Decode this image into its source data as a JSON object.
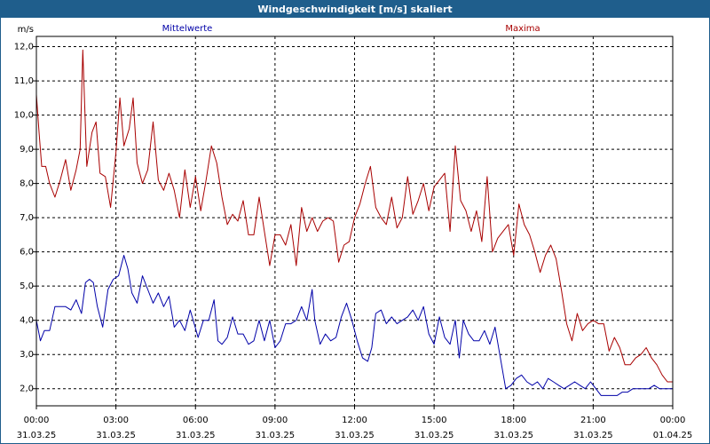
{
  "window": {
    "title": "Windgeschwindigkeit [m/s] skaliert"
  },
  "colors": {
    "title_bar": "#1f5e8c",
    "mean": "#0000a8",
    "max": "#a80000",
    "grid": "#000000"
  },
  "chart_data": {
    "type": "line",
    "title": "Windgeschwindigkeit [m/s] skaliert",
    "ylabel": "m/s",
    "xlabel": "",
    "ylim": [
      1.5,
      12.3
    ],
    "xlim": [
      0,
      24
    ],
    "grid": true,
    "yticks": [
      {
        "value": 2.0,
        "label": "2,0"
      },
      {
        "value": 3.0,
        "label": "3,0"
      },
      {
        "value": 4.0,
        "label": "4,0"
      },
      {
        "value": 5.0,
        "label": "5,0"
      },
      {
        "value": 6.0,
        "label": "6,0"
      },
      {
        "value": 7.0,
        "label": "7,0"
      },
      {
        "value": 8.0,
        "label": "8,0"
      },
      {
        "value": 9.0,
        "label": "9,0"
      },
      {
        "value": 10.0,
        "label": "10,0"
      },
      {
        "value": 11.0,
        "label": "11,0"
      },
      {
        "value": 12.0,
        "label": "12,0"
      }
    ],
    "xticks": [
      {
        "value": 0,
        "time": "00:00",
        "date": "31.03.25"
      },
      {
        "value": 3,
        "time": "03:00",
        "date": "31.03.25"
      },
      {
        "value": 6,
        "time": "06:00",
        "date": "31.03.25"
      },
      {
        "value": 9,
        "time": "09:00",
        "date": "31.03.25"
      },
      {
        "value": 12,
        "time": "12:00",
        "date": "31.03.25"
      },
      {
        "value": 15,
        "time": "15:00",
        "date": "31.03.25"
      },
      {
        "value": 18,
        "time": "18:00",
        "date": "31.03.25"
      },
      {
        "value": 21,
        "time": "21:00",
        "date": "31.03.25"
      },
      {
        "value": 24,
        "time": "00:00",
        "date": "01.04.25"
      }
    ],
    "series": [
      {
        "name": "Mittelwerte",
        "color": "#0000a8",
        "points": [
          [
            0.0,
            4.0
          ],
          [
            0.15,
            3.4
          ],
          [
            0.3,
            3.7
          ],
          [
            0.5,
            3.7
          ],
          [
            0.7,
            4.4
          ],
          [
            0.9,
            4.4
          ],
          [
            1.1,
            4.4
          ],
          [
            1.3,
            4.3
          ],
          [
            1.5,
            4.6
          ],
          [
            1.7,
            4.2
          ],
          [
            1.85,
            5.1
          ],
          [
            2.0,
            5.2
          ],
          [
            2.15,
            5.1
          ],
          [
            2.3,
            4.4
          ],
          [
            2.5,
            3.8
          ],
          [
            2.7,
            4.9
          ],
          [
            2.9,
            5.2
          ],
          [
            3.1,
            5.3
          ],
          [
            3.3,
            5.9
          ],
          [
            3.45,
            5.5
          ],
          [
            3.6,
            4.8
          ],
          [
            3.8,
            4.5
          ],
          [
            4.0,
            5.3
          ],
          [
            4.2,
            4.9
          ],
          [
            4.4,
            4.5
          ],
          [
            4.6,
            4.8
          ],
          [
            4.8,
            4.4
          ],
          [
            5.0,
            4.7
          ],
          [
            5.2,
            3.8
          ],
          [
            5.4,
            4.0
          ],
          [
            5.6,
            3.7
          ],
          [
            5.8,
            4.3
          ],
          [
            5.95,
            3.9
          ],
          [
            6.1,
            3.5
          ],
          [
            6.3,
            4.0
          ],
          [
            6.5,
            4.0
          ],
          [
            6.7,
            4.6
          ],
          [
            6.85,
            3.4
          ],
          [
            7.0,
            3.3
          ],
          [
            7.2,
            3.5
          ],
          [
            7.4,
            4.1
          ],
          [
            7.6,
            3.6
          ],
          [
            7.8,
            3.6
          ],
          [
            8.0,
            3.3
          ],
          [
            8.2,
            3.4
          ],
          [
            8.4,
            4.0
          ],
          [
            8.6,
            3.4
          ],
          [
            8.8,
            4.0
          ],
          [
            9.0,
            3.2
          ],
          [
            9.2,
            3.4
          ],
          [
            9.4,
            3.9
          ],
          [
            9.6,
            3.9
          ],
          [
            9.8,
            4.0
          ],
          [
            10.0,
            4.4
          ],
          [
            10.2,
            4.0
          ],
          [
            10.4,
            4.9
          ],
          [
            10.5,
            4.0
          ],
          [
            10.7,
            3.3
          ],
          [
            10.9,
            3.6
          ],
          [
            11.1,
            3.4
          ],
          [
            11.3,
            3.5
          ],
          [
            11.5,
            4.1
          ],
          [
            11.7,
            4.5
          ],
          [
            11.9,
            4.0
          ],
          [
            12.1,
            3.4
          ],
          [
            12.3,
            2.9
          ],
          [
            12.5,
            2.8
          ],
          [
            12.65,
            3.2
          ],
          [
            12.8,
            4.2
          ],
          [
            13.0,
            4.3
          ],
          [
            13.2,
            3.9
          ],
          [
            13.4,
            4.1
          ],
          [
            13.6,
            3.9
          ],
          [
            13.8,
            4.0
          ],
          [
            14.0,
            4.1
          ],
          [
            14.2,
            4.3
          ],
          [
            14.4,
            4.0
          ],
          [
            14.6,
            4.4
          ],
          [
            14.8,
            3.6
          ],
          [
            15.0,
            3.3
          ],
          [
            15.2,
            4.1
          ],
          [
            15.4,
            3.5
          ],
          [
            15.6,
            3.3
          ],
          [
            15.8,
            4.0
          ],
          [
            15.95,
            2.9
          ],
          [
            16.1,
            4.0
          ],
          [
            16.3,
            3.6
          ],
          [
            16.5,
            3.4
          ],
          [
            16.7,
            3.4
          ],
          [
            16.9,
            3.7
          ],
          [
            17.1,
            3.3
          ],
          [
            17.3,
            3.8
          ],
          [
            17.5,
            2.9
          ],
          [
            17.7,
            2.0
          ],
          [
            17.9,
            2.1
          ],
          [
            18.1,
            2.3
          ],
          [
            18.3,
            2.4
          ],
          [
            18.5,
            2.2
          ],
          [
            18.7,
            2.1
          ],
          [
            18.9,
            2.2
          ],
          [
            19.1,
            2.0
          ],
          [
            19.3,
            2.3
          ],
          [
            19.5,
            2.2
          ],
          [
            19.7,
            2.1
          ],
          [
            19.9,
            2.0
          ],
          [
            20.1,
            2.1
          ],
          [
            20.3,
            2.2
          ],
          [
            20.5,
            2.1
          ],
          [
            20.7,
            2.0
          ],
          [
            20.9,
            2.2
          ],
          [
            21.1,
            2.0
          ],
          [
            21.3,
            1.8
          ],
          [
            21.5,
            1.8
          ],
          [
            21.7,
            1.8
          ],
          [
            21.9,
            1.8
          ],
          [
            22.1,
            1.9
          ],
          [
            22.3,
            1.9
          ],
          [
            22.5,
            2.0
          ],
          [
            22.7,
            2.0
          ],
          [
            22.9,
            2.0
          ],
          [
            23.1,
            2.0
          ],
          [
            23.3,
            2.1
          ],
          [
            23.5,
            2.0
          ],
          [
            23.7,
            2.0
          ],
          [
            23.9,
            2.0
          ],
          [
            24.0,
            2.0
          ]
        ]
      },
      {
        "name": "Maxima",
        "color": "#a80000",
        "points": [
          [
            0.0,
            10.6
          ],
          [
            0.1,
            9.5
          ],
          [
            0.2,
            8.5
          ],
          [
            0.35,
            8.5
          ],
          [
            0.5,
            8.0
          ],
          [
            0.7,
            7.6
          ],
          [
            0.9,
            8.1
          ],
          [
            1.1,
            8.7
          ],
          [
            1.3,
            7.8
          ],
          [
            1.5,
            8.4
          ],
          [
            1.65,
            9.0
          ],
          [
            1.75,
            11.9
          ],
          [
            1.9,
            8.5
          ],
          [
            2.1,
            9.5
          ],
          [
            2.25,
            9.8
          ],
          [
            2.4,
            8.3
          ],
          [
            2.6,
            8.2
          ],
          [
            2.8,
            7.3
          ],
          [
            3.0,
            8.9
          ],
          [
            3.15,
            10.5
          ],
          [
            3.3,
            9.1
          ],
          [
            3.5,
            9.6
          ],
          [
            3.65,
            10.5
          ],
          [
            3.8,
            8.6
          ],
          [
            4.0,
            8.0
          ],
          [
            4.2,
            8.4
          ],
          [
            4.4,
            9.8
          ],
          [
            4.6,
            8.1
          ],
          [
            4.8,
            7.8
          ],
          [
            5.0,
            8.3
          ],
          [
            5.2,
            7.8
          ],
          [
            5.4,
            7.0
          ],
          [
            5.6,
            8.4
          ],
          [
            5.8,
            7.3
          ],
          [
            6.0,
            8.2
          ],
          [
            6.2,
            7.2
          ],
          [
            6.4,
            8.1
          ],
          [
            6.6,
            9.1
          ],
          [
            6.8,
            8.6
          ],
          [
            7.0,
            7.6
          ],
          [
            7.2,
            6.8
          ],
          [
            7.4,
            7.1
          ],
          [
            7.6,
            6.9
          ],
          [
            7.8,
            7.5
          ],
          [
            8.0,
            6.5
          ],
          [
            8.2,
            6.5
          ],
          [
            8.4,
            7.6
          ],
          [
            8.6,
            6.6
          ],
          [
            8.8,
            5.6
          ],
          [
            9.0,
            6.5
          ],
          [
            9.2,
            6.5
          ],
          [
            9.4,
            6.2
          ],
          [
            9.6,
            6.8
          ],
          [
            9.8,
            5.6
          ],
          [
            10.0,
            7.3
          ],
          [
            10.2,
            6.6
          ],
          [
            10.4,
            7.0
          ],
          [
            10.6,
            6.6
          ],
          [
            10.8,
            6.9
          ],
          [
            11.0,
            7.0
          ],
          [
            11.2,
            6.9
          ],
          [
            11.4,
            5.7
          ],
          [
            11.6,
            6.2
          ],
          [
            11.8,
            6.3
          ],
          [
            12.0,
            7.0
          ],
          [
            12.2,
            7.4
          ],
          [
            12.4,
            8.0
          ],
          [
            12.6,
            8.5
          ],
          [
            12.8,
            7.3
          ],
          [
            13.0,
            7.0
          ],
          [
            13.2,
            6.8
          ],
          [
            13.4,
            7.6
          ],
          [
            13.6,
            6.7
          ],
          [
            13.8,
            7.0
          ],
          [
            14.0,
            8.2
          ],
          [
            14.2,
            7.1
          ],
          [
            14.4,
            7.5
          ],
          [
            14.6,
            8.0
          ],
          [
            14.8,
            7.2
          ],
          [
            15.0,
            7.9
          ],
          [
            15.2,
            8.1
          ],
          [
            15.4,
            8.3
          ],
          [
            15.6,
            6.6
          ],
          [
            15.8,
            9.1
          ],
          [
            16.0,
            7.5
          ],
          [
            16.2,
            7.2
          ],
          [
            16.4,
            6.6
          ],
          [
            16.6,
            7.2
          ],
          [
            16.8,
            6.3
          ],
          [
            17.0,
            8.2
          ],
          [
            17.2,
            6.0
          ],
          [
            17.4,
            6.4
          ],
          [
            17.6,
            6.6
          ],
          [
            17.8,
            6.8
          ],
          [
            18.0,
            5.9
          ],
          [
            18.2,
            7.4
          ],
          [
            18.4,
            6.8
          ],
          [
            18.6,
            6.5
          ],
          [
            18.8,
            6.0
          ],
          [
            19.0,
            5.4
          ],
          [
            19.2,
            5.9
          ],
          [
            19.4,
            6.2
          ],
          [
            19.6,
            5.8
          ],
          [
            19.8,
            4.9
          ],
          [
            20.0,
            3.9
          ],
          [
            20.2,
            3.4
          ],
          [
            20.4,
            4.2
          ],
          [
            20.6,
            3.7
          ],
          [
            20.8,
            3.9
          ],
          [
            21.0,
            4.0
          ],
          [
            21.2,
            3.9
          ],
          [
            21.4,
            3.9
          ],
          [
            21.6,
            3.1
          ],
          [
            21.8,
            3.5
          ],
          [
            22.0,
            3.2
          ],
          [
            22.2,
            2.7
          ],
          [
            22.4,
            2.7
          ],
          [
            22.6,
            2.9
          ],
          [
            22.8,
            3.0
          ],
          [
            23.0,
            3.2
          ],
          [
            23.2,
            2.9
          ],
          [
            23.4,
            2.7
          ],
          [
            23.6,
            2.4
          ],
          [
            23.8,
            2.2
          ],
          [
            24.0,
            2.2
          ]
        ]
      }
    ]
  }
}
